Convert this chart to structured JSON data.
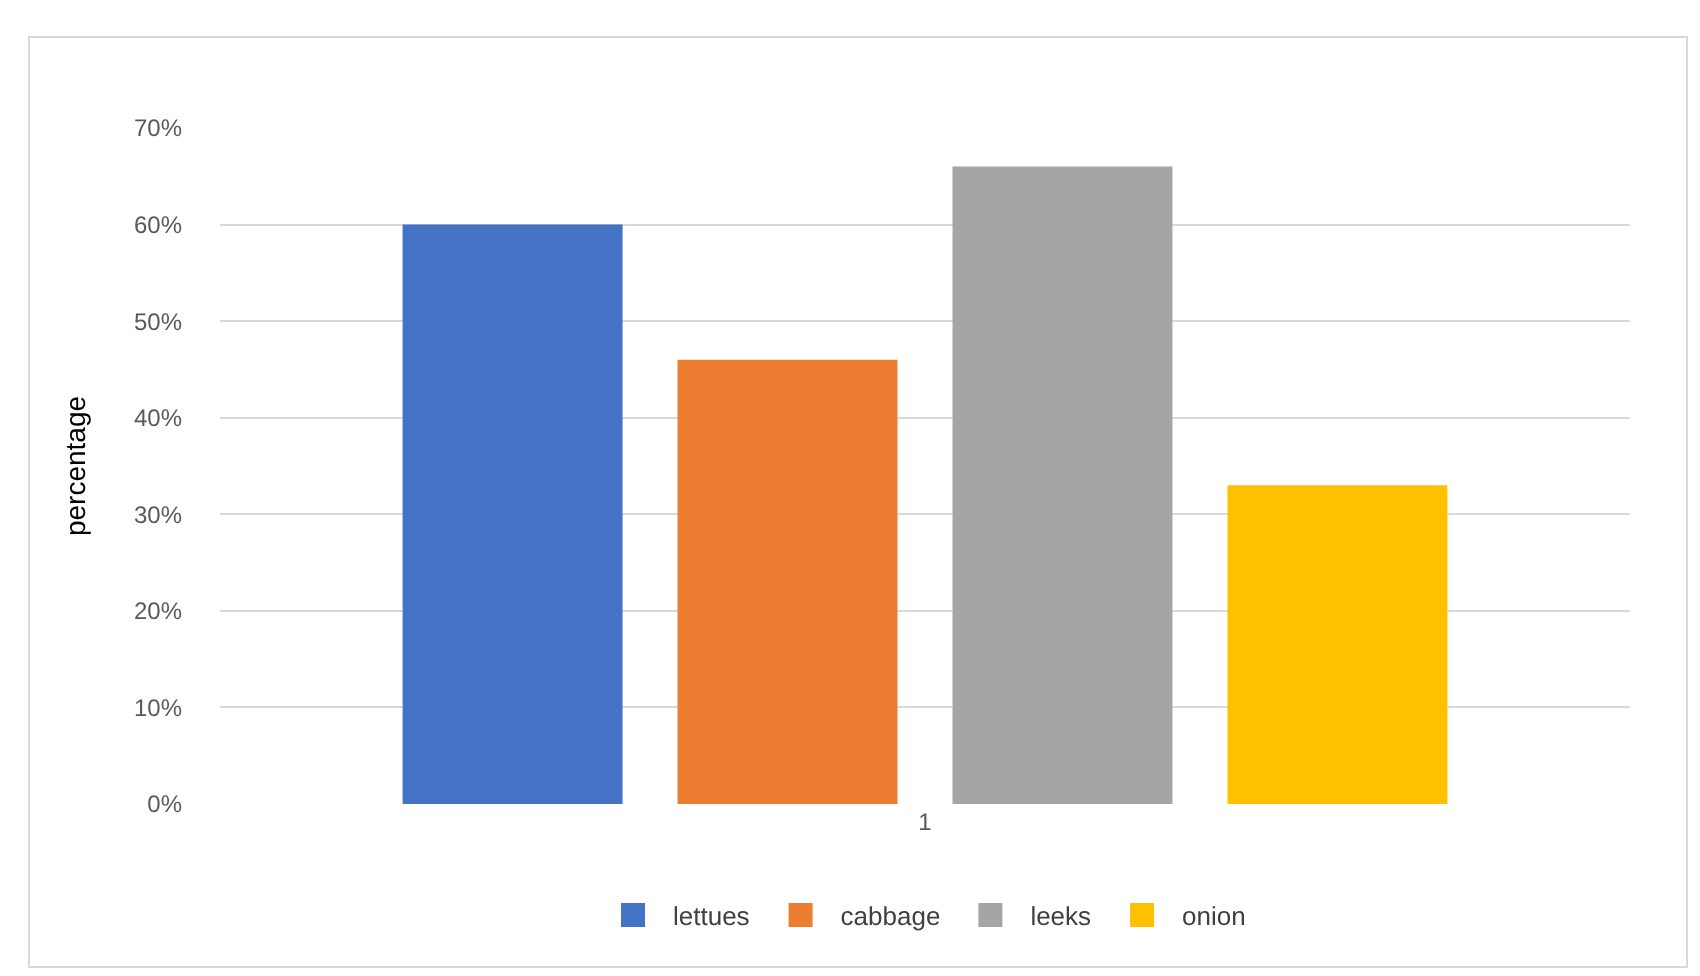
{
  "chart_data": {
    "type": "bar",
    "ylabel": "percentage",
    "categories": [
      "1"
    ],
    "series": [
      {
        "name": "lettues",
        "color": "#4472c4",
        "values": [
          60
        ]
      },
      {
        "name": "cabbage",
        "color": "#ed7d31",
        "values": [
          46
        ]
      },
      {
        "name": "leeks",
        "color": "#a5a5a5",
        "values": [
          66
        ]
      },
      {
        "name": "onion",
        "color": "#ffc000",
        "values": [
          33
        ]
      }
    ],
    "ylim": [
      0,
      70
    ],
    "yticks": [
      {
        "value": 0,
        "label": "0%"
      },
      {
        "value": 10,
        "label": "10%"
      },
      {
        "value": 20,
        "label": "20%"
      },
      {
        "value": 30,
        "label": "30%"
      },
      {
        "value": 40,
        "label": "40%"
      },
      {
        "value": 50,
        "label": "50%"
      },
      {
        "value": 60,
        "label": "60%"
      },
      {
        "value": 70,
        "label": "70%"
      }
    ],
    "grid": "y",
    "legend": "bottom"
  }
}
